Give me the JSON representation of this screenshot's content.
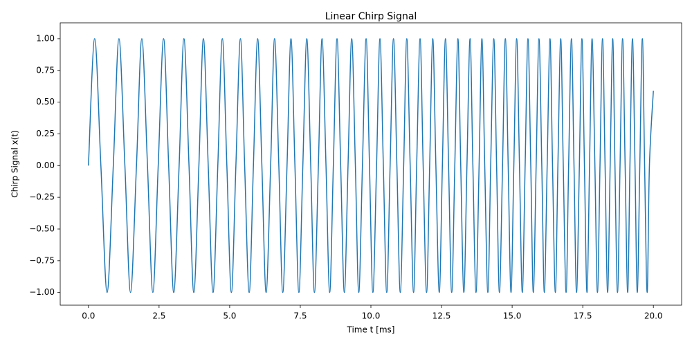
{
  "chart_data": {
    "type": "line",
    "title": "Linear Chirp Signal",
    "x_label": "Time t [ms]",
    "y_label": "Chirp Signal x(t)",
    "xlim": [
      -1,
      21
    ],
    "ylim": [
      -1.1,
      1.125
    ],
    "xticks": [
      {
        "value": 0,
        "label": "0.0"
      },
      2.5,
      {
        "value": 5,
        "label": "5.0"
      },
      7.5,
      {
        "value": 10,
        "label": "10.0"
      },
      12.5,
      {
        "value": 15,
        "label": "15.0"
      },
      17.5,
      {
        "value": 20,
        "label": "20.0"
      }
    ],
    "yticks": [
      {
        "value": -1,
        "label": "−1.00"
      },
      {
        "value": -0.75,
        "label": "−0.75"
      },
      {
        "value": -0.5,
        "label": "−0.50"
      },
      {
        "value": -0.25,
        "label": "−0.25"
      },
      {
        "value": 0,
        "label": "0.00"
      },
      {
        "value": 0.25,
        "label": "0.25"
      },
      {
        "value": 0.5,
        "label": "0.50"
      },
      {
        "value": 0.75,
        "label": "0.75"
      },
      {
        "value": 1,
        "label": "1.00"
      }
    ],
    "grid": false,
    "x": [
      0,
      0.22,
      0.44,
      0.66,
      0.88,
      1.08,
      1.29,
      1.49,
      1.7,
      1.89,
      2.09,
      2.28,
      2.47,
      2.66,
      2.84,
      3.02,
      3.21,
      3.38,
      3.56,
      3.73,
      3.91,
      4.07,
      4.24,
      4.41,
      4.58,
      4.74,
      4.9,
      5.06,
      5.22,
      5.38,
      5.53,
      5.69,
      5.84,
      5.99,
      6.14,
      6.29,
      6.45,
      6.59,
      6.74,
      6.88,
      7.03,
      7.17,
      7.31,
      7.45,
      7.59,
      7.73,
      7.87,
      8.0,
      8.14,
      8.27,
      8.41,
      8.54,
      8.67,
      8.8,
      8.93,
      9.06,
      9.19,
      9.32,
      9.45,
      9.57,
      9.7,
      9.83,
      9.95,
      10.07,
      10.2,
      10.32,
      10.44,
      10.56,
      10.68,
      10.8,
      10.92,
      11.04,
      11.16,
      11.27,
      11.39,
      11.51,
      11.62,
      11.74,
      11.85,
      11.97,
      12.08,
      12.19,
      12.3,
      12.42,
      12.53,
      12.64,
      12.75,
      12.86,
      12.97,
      13.08,
      13.18,
      13.29,
      13.4,
      13.51,
      13.61,
      13.72,
      13.83,
      13.93,
      14.03,
      14.14,
      14.24,
      14.35,
      14.45,
      14.55,
      14.66,
      14.76,
      14.86,
      14.96,
      15.06,
      15.16,
      15.26,
      15.36,
      15.46,
      15.56,
      15.66,
      15.75,
      15.85,
      15.95,
      16.05,
      16.14,
      16.24,
      16.34,
      16.43,
      16.53,
      16.62,
      16.72,
      16.81,
      16.91,
      17.0,
      17.1,
      17.19,
      17.28,
      17.38,
      17.47,
      17.56,
      17.65,
      17.74,
      17.83,
      17.93,
      18.02,
      18.11,
      18.2,
      18.29,
      18.38,
      18.47,
      18.56,
      18.64,
      18.73,
      18.82,
      18.91,
      19.0,
      19.09,
      19.17,
      19.26,
      19.35,
      19.43,
      19.52,
      19.61,
      19.69,
      19.78,
      19.86,
      20
    ],
    "series": [
      {
        "name": "x(t)",
        "color": "#1f77b4",
        "values": [
          0,
          1,
          0,
          -1,
          0,
          1,
          0,
          -1,
          0,
          1,
          0,
          -1,
          0,
          1,
          0,
          -1,
          0,
          1,
          0,
          -1,
          0,
          1,
          0,
          -1,
          0,
          1,
          0,
          -1,
          0,
          1,
          0,
          -1,
          0,
          1,
          0,
          -1,
          0,
          1,
          0,
          -1,
          0,
          1,
          0,
          -1,
          0,
          1,
          0,
          -1,
          0,
          1,
          0,
          -1,
          0,
          1,
          0,
          -1,
          0,
          1,
          0,
          -1,
          0,
          1,
          0,
          -1,
          0,
          1,
          0,
          -1,
          0,
          1,
          0,
          -1,
          0,
          1,
          0,
          -1,
          0,
          1,
          0,
          -1,
          0,
          1,
          0,
          -1,
          0,
          1,
          0,
          -1,
          0,
          1,
          0,
          -1,
          0,
          1,
          0,
          -1,
          0,
          1,
          0,
          -1,
          0,
          1,
          0,
          -1,
          0,
          1,
          0,
          -1,
          0,
          1,
          0,
          -1,
          0,
          1,
          0,
          -1,
          0,
          1,
          0,
          -1,
          0,
          1,
          0,
          -1,
          0,
          1,
          0,
          -1,
          0,
          1,
          0,
          -1,
          0,
          1,
          0,
          -1,
          0,
          1,
          0,
          -1,
          0,
          1,
          0,
          -1,
          0,
          1,
          0,
          -1,
          0,
          1,
          0,
          -1,
          0,
          1,
          0,
          -1,
          0,
          1,
          0,
          -1,
          0,
          0.59
        ]
      }
    ]
  }
}
